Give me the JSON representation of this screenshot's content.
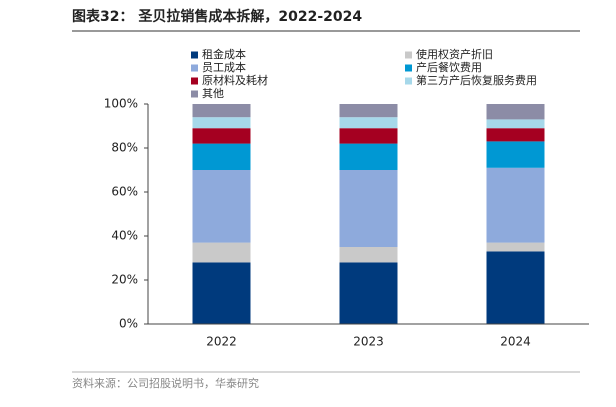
{
  "chart_data": {
    "type": "stacked_bar",
    "title": "图表32： 圣贝拉销售成本拆解，2022-2024",
    "source": "资料来源：公司招股说明书，华泰研究",
    "categories": [
      "2022",
      "2023",
      "2024"
    ],
    "series": [
      {
        "name": "租金成本",
        "color": "#003a7d",
        "values": [
          28,
          28,
          33
        ]
      },
      {
        "name": "使用权资产折旧",
        "color": "#c9c9c9",
        "values": [
          9,
          7,
          4
        ]
      },
      {
        "name": "员工成本",
        "color": "#8eaadc",
        "values": [
          33,
          35,
          34
        ]
      },
      {
        "name": "产后餐饮费用",
        "color": "#0098d3",
        "values": [
          12,
          12,
          12
        ]
      },
      {
        "name": "原材料及耗材",
        "color": "#a50021",
        "values": [
          7,
          7,
          6
        ]
      },
      {
        "name": "第三方产后恢复服务费用",
        "color": "#a6d8ea",
        "values": [
          5,
          5,
          4
        ]
      },
      {
        "name": "其他",
        "color": "#8c8ca6",
        "values": [
          6,
          6,
          7
        ]
      }
    ],
    "ylim": [
      0,
      100
    ],
    "yticks": [
      {
        "value": 0,
        "label": "0%"
      },
      {
        "value": 20,
        "label": "20%"
      },
      {
        "value": 40,
        "label": "40%"
      },
      {
        "value": 60,
        "label": "60%"
      },
      {
        "value": 80,
        "label": "80%"
      },
      {
        "value": 100,
        "label": "100%"
      }
    ]
  }
}
